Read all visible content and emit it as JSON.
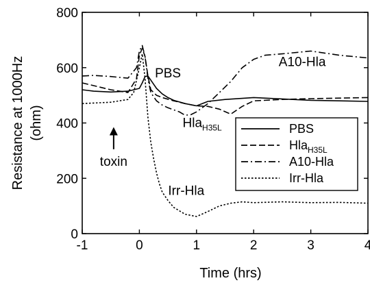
{
  "chart_data": {
    "type": "line",
    "xlabel": "Time (hrs)",
    "ylabel": "Resistance at 1000Hz (ohm)",
    "xlim": [
      -1,
      4
    ],
    "ylim": [
      0,
      800
    ],
    "xticks": [
      -1,
      0,
      1,
      2,
      3,
      4
    ],
    "yticks": [
      0,
      200,
      400,
      600,
      800
    ],
    "xtick_labels": [
      "-1",
      "0",
      "1",
      "2",
      "3",
      "4"
    ],
    "ytick_labels": [
      "0",
      "200",
      "400",
      "600",
      "800"
    ],
    "grid": false,
    "legend_position": "right",
    "series": [
      {
        "name": "PBS",
        "legend_main": "PBS",
        "legend_sub": "",
        "dash": "solid",
        "x": [
          -1,
          -0.8,
          -0.5,
          -0.2,
          0,
          0.05,
          0.1,
          0.15,
          0.2,
          0.3,
          0.4,
          0.5,
          0.6,
          0.8,
          1.0,
          1.2,
          1.5,
          2.0,
          2.5,
          3.0,
          3.5,
          4.0
        ],
        "y": [
          520,
          515,
          512,
          515,
          525,
          545,
          568,
          570,
          555,
          525,
          505,
          492,
          482,
          470,
          462,
          478,
          485,
          492,
          487,
          482,
          480,
          478
        ]
      },
      {
        "name": "HlaH35L",
        "legend_main": "Hla",
        "legend_sub": "H35L",
        "dash": "dashed",
        "x": [
          -1,
          -0.8,
          -0.5,
          -0.2,
          -0.05,
          0,
          0.05,
          0.1,
          0.15,
          0.2,
          0.3,
          0.4,
          0.6,
          0.8,
          1.0,
          1.2,
          1.4,
          1.6,
          1.8,
          2.0,
          2.5,
          3.0,
          3.5,
          4.0
        ],
        "y": [
          545,
          535,
          520,
          510,
          560,
          645,
          670,
          640,
          570,
          520,
          500,
          492,
          480,
          470,
          462,
          460,
          450,
          432,
          460,
          480,
          485,
          488,
          490,
          492
        ]
      },
      {
        "name": "A10-Hla",
        "legend_main": "A10-Hla",
        "legend_sub": "",
        "dash": "dashdot",
        "x": [
          -1,
          -0.8,
          -0.5,
          -0.2,
          -0.05,
          0,
          0.05,
          0.1,
          0.15,
          0.2,
          0.3,
          0.4,
          0.5,
          0.7,
          0.8,
          0.9,
          1.0,
          1.2,
          1.4,
          1.6,
          1.8,
          2.0,
          2.2,
          2.5,
          3.0,
          3.5,
          4.0
        ],
        "y": [
          570,
          572,
          568,
          562,
          600,
          660,
          680,
          640,
          560,
          510,
          480,
          465,
          455,
          440,
          428,
          430,
          440,
          470,
          510,
          550,
          600,
          630,
          645,
          650,
          660,
          645,
          635
        ]
      },
      {
        "name": "Irr-Hla",
        "legend_main": "Irr-Hla",
        "legend_sub": "",
        "dash": "dotted",
        "x": [
          -1,
          -0.8,
          -0.5,
          -0.2,
          -0.1,
          0,
          0.05,
          0.1,
          0.15,
          0.2,
          0.25,
          0.3,
          0.35,
          0.4,
          0.5,
          0.6,
          0.8,
          1.0,
          1.2,
          1.4,
          1.6,
          1.8,
          2.0,
          2.5,
          3.0,
          3.5,
          4.0
        ],
        "y": [
          470,
          472,
          475,
          485,
          510,
          600,
          650,
          560,
          420,
          330,
          270,
          220,
          180,
          150,
          120,
          95,
          70,
          62,
          80,
          100,
          110,
          115,
          112,
          115,
          112,
          113,
          110
        ]
      }
    ],
    "annotations": [
      {
        "text": "PBS",
        "x": 0.5,
        "y": 565
      },
      {
        "text": "A10-Hla",
        "x": 2.85,
        "y": 605
      },
      {
        "text": "Irr-Hla",
        "x": 0.82,
        "y": 140
      },
      {
        "text": "toxin",
        "x": -0.45,
        "y": 245
      }
    ],
    "subscript_annotation": {
      "main": "Hla",
      "sub": "H35L",
      "x": 1.1,
      "y": 385
    },
    "arrow": {
      "x": -0.45,
      "y_from": 305,
      "y_to": 385
    }
  }
}
